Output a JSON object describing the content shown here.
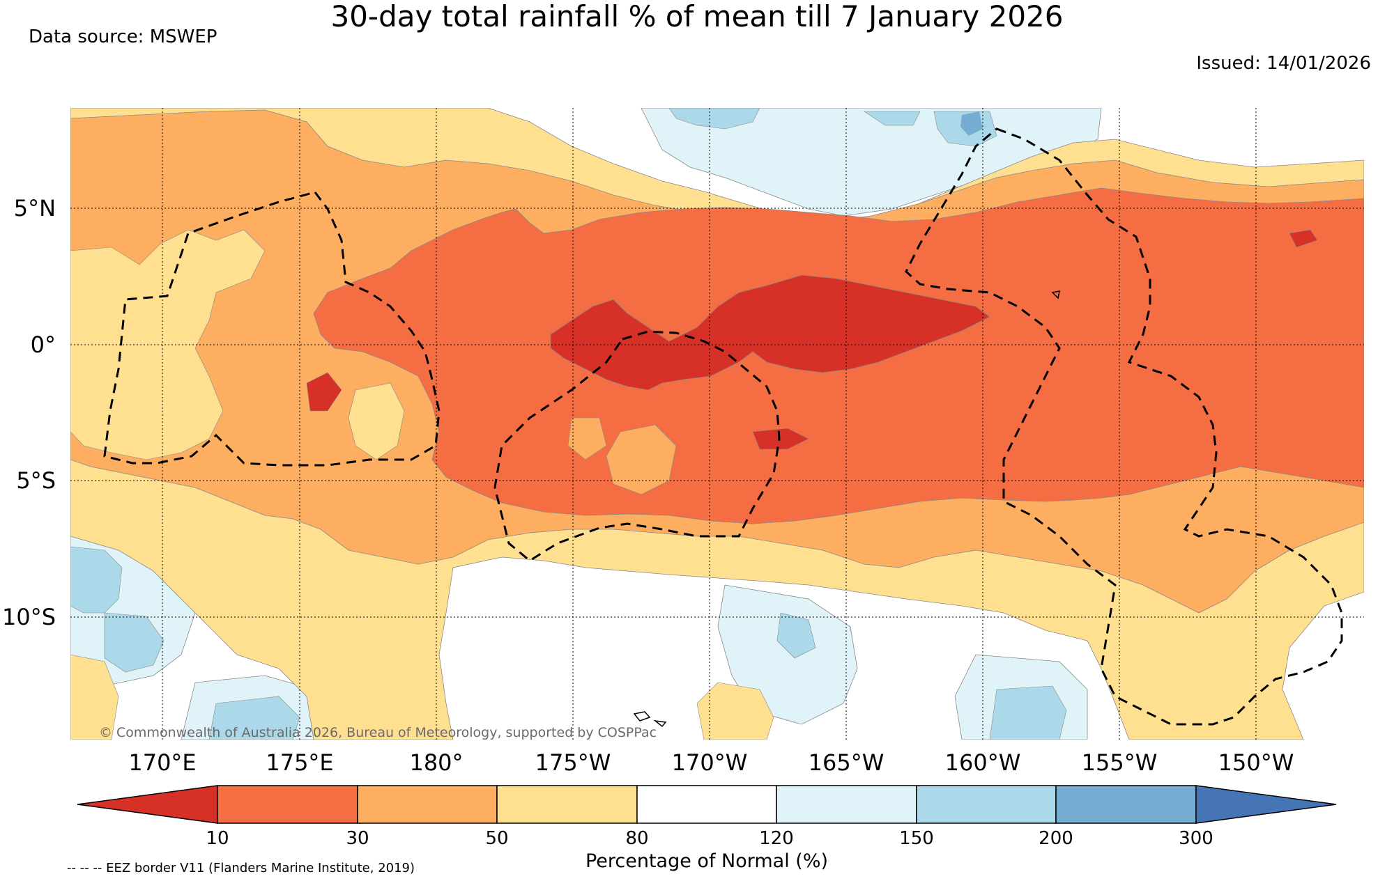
{
  "title": "30-day total rainfall % of mean till 7 January 2026",
  "data_source": "Data source: MSWEP",
  "issued": "Issued: 14/01/2026",
  "copyright": "© Commonwealth of Australia 2026, Bureau of Meteorology, supported by COSPPac",
  "footnote": "-- -- -- EEZ border V11 (Flanders Marine Institute, 2019)",
  "axes": {
    "lat_labels": [
      "5°N",
      "0°",
      "5°S",
      "10°S"
    ],
    "lon_labels": [
      "170°E",
      "175°E",
      "180°",
      "175°W",
      "170°W",
      "165°W",
      "160°W",
      "155°W",
      "150°W"
    ]
  },
  "colorbar": {
    "title": "Percentage of Normal (%)",
    "ticks": [
      "10",
      "30",
      "50",
      "80",
      "120",
      "150",
      "200",
      "300"
    ],
    "colors": [
      "#d73027",
      "#f46d43",
      "#fdae61",
      "#fee090",
      "#ffffff",
      "#e0f3f8",
      "#abd9e9",
      "#74add1",
      "#4575b4"
    ]
  },
  "palette": {
    "p10": "#d73027",
    "p30": "#f46d43",
    "p50": "#fdae61",
    "p80": "#fee090",
    "p120": "#ffffff",
    "p150": "#e0f3f8",
    "p200": "#abd9e9",
    "p300": "#74add1"
  }
}
